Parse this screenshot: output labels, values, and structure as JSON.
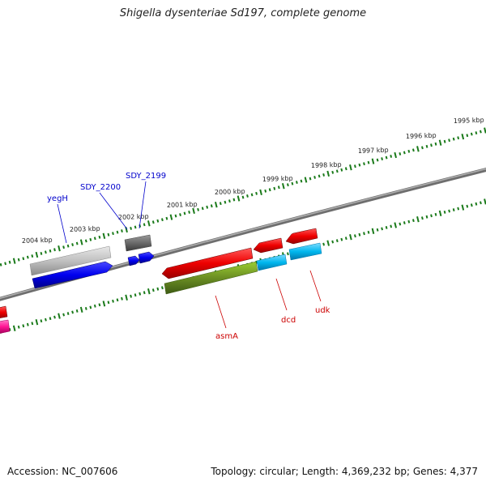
{
  "title": "Shigella dysenteriae Sd197, complete genome",
  "footer": {
    "accession": "Accession: NC_007606",
    "topology": "Topology: circular; Length: 4,369,232 bp; Genes: 4,377"
  },
  "ruler_labels": [
    "2004 kbp",
    "2003 kbp",
    "2002 kbp",
    "2001 kbp",
    "2000 kbp",
    "1999 kbp",
    "1998 kbp",
    "1997 kbp",
    "1996 kbp",
    "1995 kbp"
  ],
  "genes": [
    {
      "name": "yegH",
      "color": "#0000cc"
    },
    {
      "name": "SDY_2200",
      "color": "#0000cc"
    },
    {
      "name": "SDY_2199",
      "color": "#0000cc"
    },
    {
      "name": "asmA",
      "color": "#cc0000"
    },
    {
      "name": "dcd",
      "color": "#cc0000"
    },
    {
      "name": "udk",
      "color": "#cc0000"
    }
  ],
  "colors": {
    "backbone": "#808080",
    "tick": "#1a7a1a",
    "forward_cds": "#0000ee",
    "reverse_cds": "#ee0000",
    "cog_green": "#6b8e23",
    "cog_cyan": "#00b7ee",
    "cog_gray": "#b8b8b8",
    "cog_pink": "#ff1493"
  }
}
